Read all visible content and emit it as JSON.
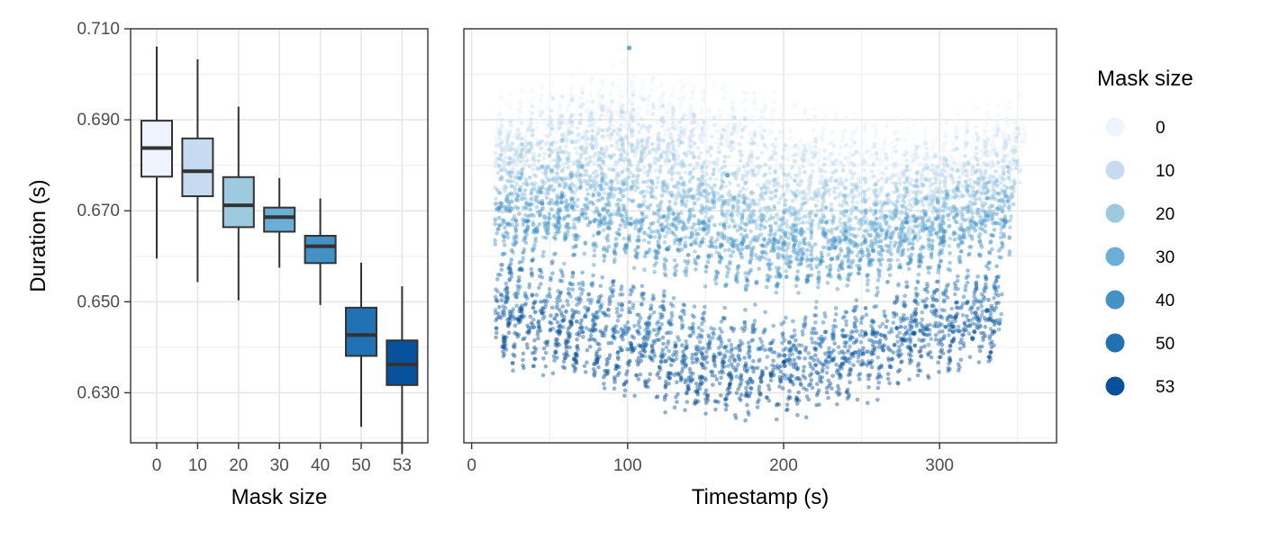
{
  "colors": {
    "0": "#eef3fd",
    "10": "#c6dbef",
    "20": "#9ecae1",
    "30": "#6baed6",
    "40": "#4292c6",
    "50": "#2171b5",
    "53": "#08519c"
  },
  "chart_data": [
    {
      "type": "box",
      "xlabel": "Mask size",
      "ylabel": "Duration (s)",
      "categories": [
        "0",
        "10",
        "20",
        "30",
        "40",
        "50",
        "53"
      ],
      "ylim": [
        0.619,
        0.71
      ],
      "yticks": [
        0.63,
        0.65,
        0.67,
        0.69,
        0.71
      ],
      "ytick_labels": [
        "0.630",
        "0.650",
        "0.670",
        "0.690",
        "0.710"
      ],
      "grid": true,
      "boxes": [
        {
          "category": "0",
          "whisker_low": 0.6595,
          "q1": 0.6775,
          "median": 0.6838,
          "q3": 0.6898,
          "whisker_high": 0.7061
        },
        {
          "category": "10",
          "whisker_low": 0.6543,
          "q1": 0.6732,
          "median": 0.6787,
          "q3": 0.6859,
          "whisker_high": 0.7033
        },
        {
          "category": "20",
          "whisker_low": 0.6503,
          "q1": 0.6664,
          "median": 0.6712,
          "q3": 0.6774,
          "whisker_high": 0.6929
        },
        {
          "category": "30",
          "whisker_low": 0.6575,
          "q1": 0.6654,
          "median": 0.6686,
          "q3": 0.6707,
          "whisker_high": 0.6772
        },
        {
          "category": "40",
          "whisker_low": 0.6493,
          "q1": 0.6585,
          "median": 0.6622,
          "q3": 0.6645,
          "whisker_high": 0.6727
        },
        {
          "category": "50",
          "whisker_low": 0.6225,
          "q1": 0.6381,
          "median": 0.6427,
          "q3": 0.6487,
          "whisker_high": 0.6586
        },
        {
          "category": "53",
          "whisker_low": 0.6165,
          "q1": 0.6317,
          "median": 0.6362,
          "q3": 0.6415,
          "whisker_high": 0.6534
        }
      ]
    },
    {
      "type": "scatter",
      "xlabel": "Timestamp (s)",
      "ylabel": "Duration (s)",
      "xlim": [
        -5,
        375
      ],
      "xticks": [
        0,
        100,
        200,
        300
      ],
      "xtick_labels": [
        "0",
        "100",
        "200",
        "300"
      ],
      "ylim": [
        0.619,
        0.71
      ],
      "grid": true,
      "legend": {
        "title": "Mask size",
        "position": "right",
        "labels": [
          "0",
          "10",
          "20",
          "30",
          "40",
          "50",
          "53"
        ]
      },
      "series": [
        {
          "name": "0",
          "x_range": [
            15,
            355
          ],
          "center": 0.688,
          "wave_amp": 0.005,
          "spread": 0.0055
        },
        {
          "name": "10",
          "x_range": [
            15,
            352
          ],
          "center": 0.682,
          "wave_amp": 0.005,
          "spread": 0.0055
        },
        {
          "name": "20",
          "x_range": [
            15,
            350
          ],
          "center": 0.675,
          "wave_amp": 0.005,
          "spread": 0.0055
        },
        {
          "name": "30",
          "x_range": [
            15,
            348
          ],
          "center": 0.669,
          "wave_amp": 0.004,
          "spread": 0.005
        },
        {
          "name": "40",
          "x_range": [
            15,
            345
          ],
          "center": 0.663,
          "wave_amp": 0.004,
          "spread": 0.005
        },
        {
          "name": "50",
          "x_range": [
            15,
            340
          ],
          "center": 0.646,
          "wave_amp": 0.006,
          "spread": 0.006
        },
        {
          "name": "53",
          "x_range": [
            15,
            338
          ],
          "center": 0.638,
          "wave_amp": 0.006,
          "spread": 0.006
        }
      ],
      "outliers": [
        {
          "x": 101,
          "y": 0.7058,
          "series": "40"
        },
        {
          "x": 164,
          "y": 0.6778,
          "series": "40"
        }
      ]
    }
  ]
}
